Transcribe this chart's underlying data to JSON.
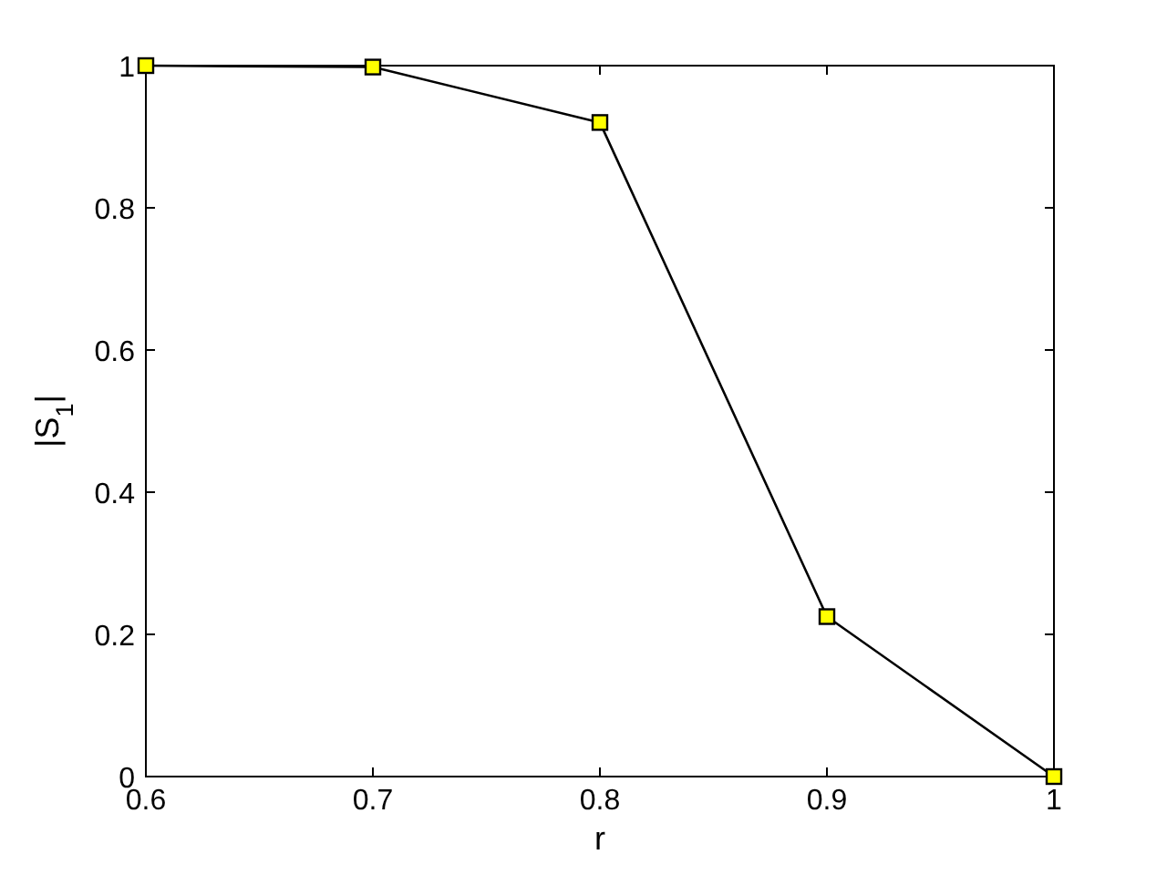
{
  "chart_data": {
    "type": "line",
    "xlabel": "r",
    "ylabel": "|S$_{1}$|",
    "x": [
      0.6,
      0.7,
      0.8,
      0.9,
      1
    ],
    "series": [
      {
        "color": "#000000",
        "values": [
          1,
          0.998,
          0.92,
          0.225,
          0
        ]
      }
    ],
    "xlim": [
      0.6,
      1
    ],
    "xticks": [
      0.6,
      0.7,
      0.8,
      0.9,
      1
    ],
    "ylim": [
      0,
      1
    ],
    "yticks": [
      0,
      0.2,
      0.4,
      0.6,
      0.8,
      1
    ],
    "grid": false,
    "marker": "square",
    "line_style": "solid"
  }
}
